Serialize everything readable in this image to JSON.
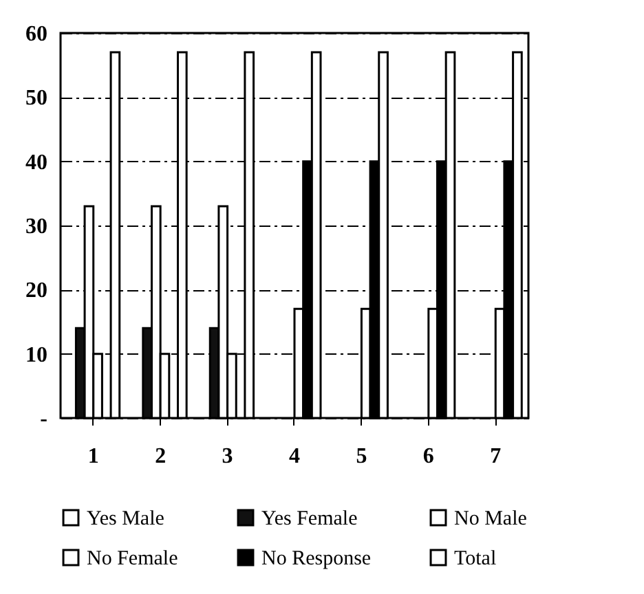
{
  "chart_data": {
    "type": "bar",
    "categories": [
      "1",
      "2",
      "3",
      "4",
      "5",
      "6",
      "7"
    ],
    "series": [
      {
        "name": "Yes Male",
        "color": "#ffffff",
        "values": [
          null,
          null,
          null,
          null,
          null,
          null,
          null
        ]
      },
      {
        "name": "Yes Female",
        "color": "#111111",
        "values": [
          14,
          14,
          14,
          null,
          null,
          null,
          null
        ]
      },
      {
        "name": "No Male",
        "color": "#ffffff",
        "values": [
          33,
          33,
          33,
          null,
          null,
          null,
          null
        ]
      },
      {
        "name": "No Female",
        "color": "#ffffff",
        "values": [
          10,
          10,
          10,
          17,
          17,
          17,
          17
        ]
      },
      {
        "name": "No Response",
        "color": "#000000",
        "values": [
          null,
          null,
          null,
          40,
          40,
          40,
          40
        ]
      },
      {
        "name": "Total",
        "color": "#ffffff",
        "values": [
          57,
          57,
          57,
          57,
          57,
          57,
          57
        ]
      }
    ],
    "ylim": [
      0,
      60
    ],
    "yticks": [
      {
        "value": 0,
        "label": "-"
      },
      10,
      20,
      30,
      40,
      50,
      60
    ],
    "grid": "y",
    "legend": "bottom"
  }
}
